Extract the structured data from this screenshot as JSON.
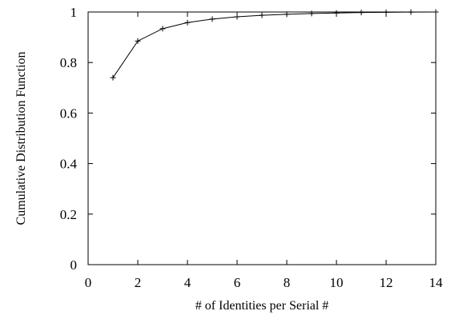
{
  "chart_data": {
    "type": "line",
    "xlabel": "# of Identities per Serial #",
    "ylabel": "Cumulative Distribution Function",
    "xlim": [
      0,
      14
    ],
    "ylim": [
      0,
      1
    ],
    "x_ticks": [
      0,
      2,
      4,
      6,
      8,
      10,
      12,
      14
    ],
    "x_tick_labels": [
      "0",
      "2",
      "4",
      "6",
      "8",
      "10",
      "12",
      "14"
    ],
    "y_ticks": [
      0,
      0.2,
      0.4,
      0.6,
      0.8,
      1
    ],
    "y_tick_labels": [
      "0",
      "0.2",
      "0.4",
      "0.6",
      "0.8",
      "1"
    ],
    "grid": false,
    "legend": "none",
    "marker": "plus",
    "line_color": "#000000",
    "series": [
      {
        "x": [
          1,
          2,
          3,
          4,
          5,
          6,
          7,
          8,
          9,
          10,
          11,
          12,
          13,
          14
        ],
        "y": [
          0.74,
          0.885,
          0.934,
          0.958,
          0.972,
          0.981,
          0.987,
          0.991,
          0.994,
          0.996,
          0.998,
          0.999,
          0.9995,
          1.0
        ]
      }
    ]
  }
}
